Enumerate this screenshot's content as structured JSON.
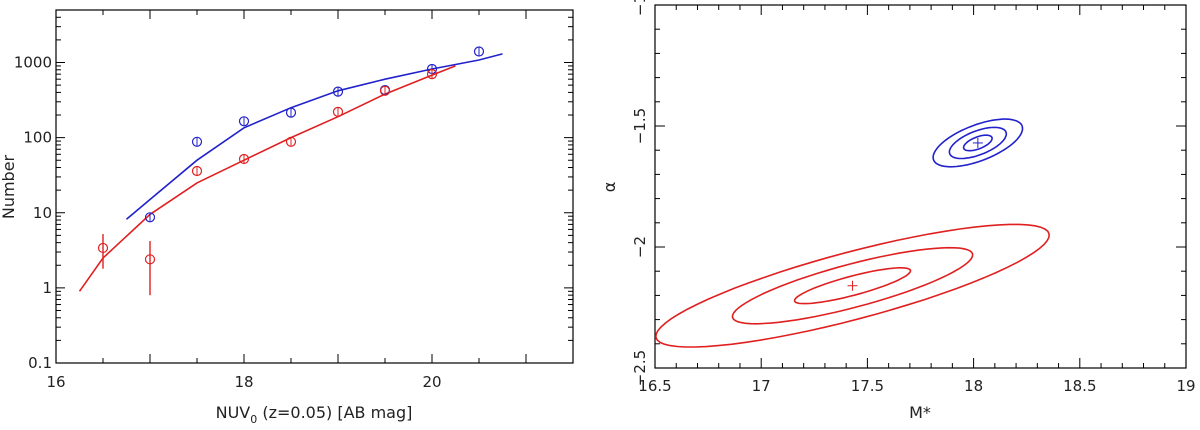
{
  "chart_data": [
    {
      "type": "scatter",
      "panel": "left",
      "xlabel": "NUV",
      "xlabel_sub": "0",
      "xlabel_rest": " (z=0.05) [AB mag]",
      "ylabel": "Number",
      "xlim": [
        16,
        21.5
      ],
      "ylim": [
        0.1,
        5000
      ],
      "yscale": "log",
      "xticks": [
        16,
        18,
        20
      ],
      "yticks": [
        0.1,
        1,
        10,
        100,
        1000
      ],
      "ytick_labels": [
        "0.1",
        "1",
        "10",
        "100",
        "1000"
      ],
      "series": [
        {
          "name": "blue",
          "color": "#2222cc",
          "points": [
            {
              "x": 17.0,
              "y": 8.7
            },
            {
              "x": 17.5,
              "y": 88
            },
            {
              "x": 18.0,
              "y": 165
            },
            {
              "x": 18.5,
              "y": 215
            },
            {
              "x": 19.0,
              "y": 410
            },
            {
              "x": 19.5,
              "y": 430
            },
            {
              "x": 20.0,
              "y": 820
            },
            {
              "x": 20.5,
              "y": 1400
            }
          ],
          "fit": [
            [
              16.75,
              8.2
            ],
            [
              17.0,
              15
            ],
            [
              17.5,
              50
            ],
            [
              18.0,
              135
            ],
            [
              18.5,
              250
            ],
            [
              19.0,
              420
            ],
            [
              19.5,
              600
            ],
            [
              20.0,
              820
            ],
            [
              20.5,
              1080
            ],
            [
              20.75,
              1300
            ]
          ]
        },
        {
          "name": "red",
          "color": "#e02020",
          "points": [
            {
              "x": 16.5,
              "y": 3.4,
              "yerr": [
                1.8,
                5.2
              ]
            },
            {
              "x": 17.0,
              "y": 2.4,
              "yerr": [
                0.8,
                4.2
              ]
            },
            {
              "x": 17.5,
              "y": 36
            },
            {
              "x": 18.0,
              "y": 52
            },
            {
              "x": 18.5,
              "y": 88
            },
            {
              "x": 19.0,
              "y": 220
            },
            {
              "x": 19.5,
              "y": 420
            },
            {
              "x": 20.0,
              "y": 700
            }
          ],
          "fit": [
            [
              16.25,
              0.9
            ],
            [
              16.5,
              2.5
            ],
            [
              17.0,
              9.5
            ],
            [
              17.5,
              25
            ],
            [
              18.0,
              50
            ],
            [
              18.5,
              100
            ],
            [
              19.0,
              190
            ],
            [
              19.5,
              380
            ],
            [
              20.0,
              680
            ],
            [
              20.25,
              900
            ]
          ]
        }
      ]
    },
    {
      "type": "contour",
      "panel": "right",
      "xlabel": "M*",
      "ylabel": "α",
      "xlim": [
        16.5,
        19
      ],
      "ylim": [
        -2.5,
        -1
      ],
      "xticks": [
        16.5,
        17,
        17.5,
        18,
        18.5,
        19
      ],
      "xtick_labels": [
        "16.5",
        "17",
        "17.5",
        "18",
        "18.5",
        "19"
      ],
      "yticks": [
        -2.5,
        -2,
        -1.5,
        -1
      ],
      "ytick_labels": [
        "−2.5",
        "−2",
        "−1.5",
        "−1"
      ],
      "contour_sets": [
        {
          "name": "blue",
          "color": "#2222cc",
          "best_fit": {
            "x": 18.02,
            "y": -1.57
          },
          "levels": [
            {
              "a": 0.07,
              "b": 0.025,
              "angle_deg": 18
            },
            {
              "a": 0.14,
              "b": 0.05,
              "angle_deg": 18
            },
            {
              "a": 0.22,
              "b": 0.075,
              "angle_deg": 18
            }
          ]
        },
        {
          "name": "red",
          "color": "#e02020",
          "best_fit": {
            "x": 17.43,
            "y": -2.16
          },
          "levels": [
            {
              "a": 0.28,
              "b": 0.04,
              "angle_deg": 13
            },
            {
              "a": 0.58,
              "b": 0.09,
              "angle_deg": 13
            },
            {
              "a": 0.95,
              "b": 0.14,
              "angle_deg": 13
            }
          ]
        }
      ]
    }
  ]
}
